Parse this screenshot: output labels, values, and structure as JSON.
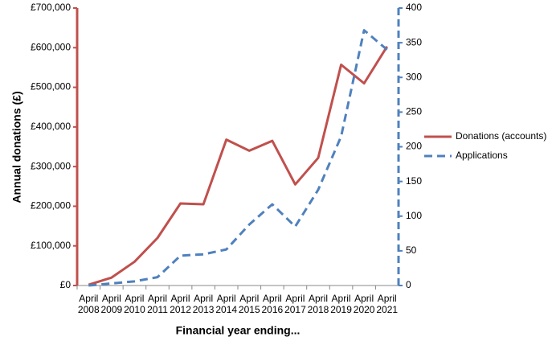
{
  "chart_data": {
    "type": "line",
    "x_label": "Financial  year ending...",
    "y_label": "Annual donations (£)",
    "categories": [
      "April 2008",
      "April 2009",
      "April 2010",
      "April 2011",
      "April 2012",
      "April 2013",
      "April 2014",
      "April 2015",
      "April 2016",
      "April 2017",
      "April 2018",
      "April 2019",
      "April 2020",
      "April 2021"
    ],
    "ylim": [
      0,
      700000
    ],
    "yticks": [
      {
        "value": 0,
        "label": "£0"
      },
      {
        "value": 100000,
        "label": "£100,000"
      },
      {
        "value": 200000,
        "label": "£200,000"
      },
      {
        "value": 300000,
        "label": "£300,000"
      },
      {
        "value": 400000,
        "label": "£400,000"
      },
      {
        "value": 500000,
        "label": "£500,000"
      },
      {
        "value": 600000,
        "label": "£600,000"
      },
      {
        "value": 700000,
        "label": "£700,000"
      }
    ],
    "y2lim": [
      0,
      400
    ],
    "y2ticks": [
      0,
      50,
      100,
      150,
      200,
      250,
      300,
      350,
      400
    ],
    "legend": "right",
    "series": [
      {
        "name": "Donations (accounts)",
        "color": "#c0504d",
        "dash": false,
        "values": [
          2000,
          20000,
          60000,
          120000,
          207000,
          205000,
          368000,
          340000,
          365000,
          255000,
          322000,
          557000,
          510000,
          603000
        ]
      },
      {
        "name": "Applications",
        "color": "#4f81bd",
        "dash": true,
        "axis": "y2",
        "values": [
          0,
          3,
          6,
          12,
          43,
          45,
          52,
          88,
          117,
          85,
          138,
          215,
          368,
          340
        ]
      }
    ]
  }
}
